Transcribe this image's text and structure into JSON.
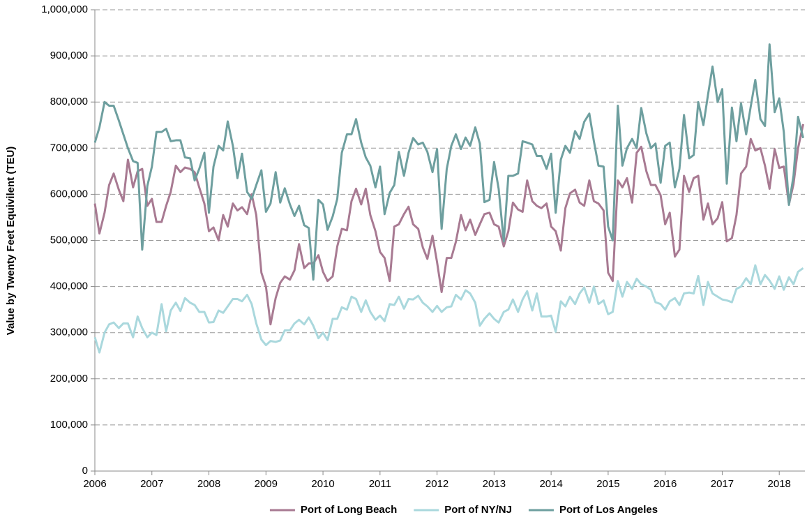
{
  "chart_data": {
    "type": "line",
    "y_label": "Value by Twenty Feet Equivilent (TEU)",
    "x": [
      2006,
      2006.08,
      2006.17,
      2006.25,
      2006.33,
      2006.42,
      2006.5,
      2006.58,
      2006.67,
      2006.75,
      2006.83,
      2006.92,
      2007,
      2007.08,
      2007.17,
      2007.25,
      2007.33,
      2007.42,
      2007.5,
      2007.58,
      2007.67,
      2007.75,
      2007.83,
      2007.92,
      2008,
      2008.08,
      2008.17,
      2008.25,
      2008.33,
      2008.42,
      2008.5,
      2008.58,
      2008.67,
      2008.75,
      2008.83,
      2008.92,
      2009,
      2009.08,
      2009.17,
      2009.25,
      2009.33,
      2009.42,
      2009.5,
      2009.58,
      2009.67,
      2009.75,
      2009.83,
      2009.92,
      2010,
      2010.08,
      2010.17,
      2010.25,
      2010.33,
      2010.42,
      2010.5,
      2010.58,
      2010.67,
      2010.75,
      2010.83,
      2010.92,
      2011,
      2011.08,
      2011.17,
      2011.25,
      2011.33,
      2011.42,
      2011.5,
      2011.58,
      2011.67,
      2011.75,
      2011.83,
      2011.92,
      2012,
      2012.08,
      2012.17,
      2012.25,
      2012.33,
      2012.42,
      2012.5,
      2012.58,
      2012.67,
      2012.75,
      2012.83,
      2012.92,
      2013,
      2013.08,
      2013.17,
      2013.25,
      2013.33,
      2013.42,
      2013.5,
      2013.58,
      2013.67,
      2013.75,
      2013.83,
      2013.92,
      2014,
      2014.08,
      2014.17,
      2014.25,
      2014.33,
      2014.42,
      2014.5,
      2014.58,
      2014.67,
      2014.75,
      2014.83,
      2014.92,
      2015,
      2015.08,
      2015.17,
      2015.25,
      2015.33,
      2015.42,
      2015.5,
      2015.58,
      2015.67,
      2015.75,
      2015.83,
      2015.92,
      2016,
      2016.08,
      2016.17,
      2016.25,
      2016.33,
      2016.42,
      2016.5,
      2016.58,
      2016.67,
      2016.75,
      2016.83,
      2016.92,
      2017,
      2017.08,
      2017.17,
      2017.25,
      2017.33,
      2017.42,
      2017.5,
      2017.58,
      2017.67,
      2017.75,
      2017.83,
      2017.92,
      2018,
      2018.08,
      2018.17,
      2018.25,
      2018.33,
      2018.42
    ],
    "series": [
      {
        "name": "Port of Long Beach",
        "color": "#a87a92",
        "values": [
          580000,
          515000,
          560000,
          620000,
          645000,
          610000,
          585000,
          675000,
          615000,
          650000,
          655000,
          575000,
          590000,
          540000,
          540000,
          575000,
          605000,
          662000,
          648000,
          658000,
          655000,
          648000,
          615000,
          580000,
          520000,
          528000,
          500000,
          555000,
          530000,
          580000,
          565000,
          572000,
          557000,
          600000,
          555000,
          430000,
          400000,
          318000,
          375000,
          408000,
          422000,
          415000,
          435000,
          492000,
          440000,
          450000,
          450000,
          468000,
          432000,
          412000,
          422000,
          487000,
          525000,
          522000,
          585000,
          612000,
          578000,
          612000,
          555000,
          520000,
          475000,
          462000,
          412000,
          530000,
          535000,
          557000,
          573000,
          535000,
          525000,
          485000,
          460000,
          510000,
          453000,
          388000,
          462000,
          462000,
          497000,
          555000,
          522000,
          545000,
          512000,
          535000,
          557000,
          560000,
          535000,
          530000,
          487000,
          520000,
          582000,
          567000,
          562000,
          630000,
          585000,
          575000,
          570000,
          580000,
          530000,
          520000,
          478000,
          570000,
          602000,
          610000,
          582000,
          575000,
          630000,
          585000,
          580000,
          565000,
          430000,
          412000,
          630000,
          615000,
          635000,
          582000,
          690000,
          703000,
          650000,
          620000,
          620000,
          598000,
          535000,
          560000,
          465000,
          480000,
          640000,
          605000,
          635000,
          640000,
          545000,
          580000,
          535000,
          548000,
          583000,
          498000,
          505000,
          555000,
          645000,
          660000,
          720000,
          695000,
          700000,
          662000,
          612000,
          698000,
          657000,
          660000,
          578000,
          622000,
          700000,
          752000
        ]
      },
      {
        "name": "Port of NY/NJ",
        "color": "#aad8dd",
        "values": [
          290000,
          257000,
          300000,
          318000,
          322000,
          310000,
          320000,
          320000,
          290000,
          335000,
          310000,
          290000,
          300000,
          295000,
          362000,
          303000,
          348000,
          365000,
          347000,
          375000,
          365000,
          360000,
          345000,
          345000,
          322000,
          323000,
          348000,
          343000,
          357000,
          373000,
          373000,
          368000,
          382000,
          362000,
          320000,
          285000,
          273000,
          282000,
          280000,
          283000,
          305000,
          305000,
          320000,
          328000,
          318000,
          333000,
          315000,
          288000,
          300000,
          284000,
          330000,
          330000,
          355000,
          350000,
          378000,
          373000,
          345000,
          370000,
          345000,
          328000,
          337000,
          325000,
          362000,
          360000,
          378000,
          352000,
          373000,
          372000,
          380000,
          365000,
          357000,
          345000,
          358000,
          345000,
          355000,
          357000,
          382000,
          372000,
          392000,
          385000,
          365000,
          315000,
          330000,
          342000,
          330000,
          322000,
          345000,
          350000,
          372000,
          345000,
          372000,
          390000,
          348000,
          385000,
          335000,
          335000,
          337000,
          302000,
          368000,
          357000,
          378000,
          362000,
          385000,
          398000,
          365000,
          400000,
          362000,
          370000,
          340000,
          345000,
          412000,
          378000,
          410000,
          395000,
          417000,
          405000,
          400000,
          393000,
          366000,
          362000,
          350000,
          368000,
          375000,
          360000,
          385000,
          387000,
          385000,
          423000,
          360000,
          410000,
          385000,
          378000,
          372000,
          370000,
          366000,
          395000,
          400000,
          418000,
          405000,
          446000,
          405000,
          425000,
          413000,
          395000,
          422000,
          393000,
          420000,
          405000,
          432000,
          440000
        ]
      },
      {
        "name": "Port of Los Angeles",
        "color": "#6e9f9f",
        "values": [
          712000,
          745000,
          800000,
          792000,
          792000,
          760000,
          730000,
          700000,
          672000,
          668000,
          480000,
          618000,
          660000,
          735000,
          735000,
          742000,
          715000,
          717000,
          717000,
          680000,
          678000,
          630000,
          655000,
          690000,
          560000,
          660000,
          705000,
          695000,
          758000,
          705000,
          635000,
          688000,
          605000,
          590000,
          620000,
          652000,
          562000,
          580000,
          648000,
          582000,
          613000,
          578000,
          553000,
          575000,
          533000,
          527000,
          415000,
          588000,
          578000,
          523000,
          552000,
          590000,
          690000,
          730000,
          730000,
          763000,
          712000,
          680000,
          662000,
          615000,
          660000,
          557000,
          603000,
          620000,
          692000,
          640000,
          690000,
          722000,
          708000,
          712000,
          692000,
          648000,
          698000,
          525000,
          655000,
          705000,
          730000,
          698000,
          723000,
          705000,
          745000,
          710000,
          583000,
          588000,
          670000,
          612000,
          498000,
          640000,
          640000,
          645000,
          715000,
          712000,
          708000,
          683000,
          683000,
          655000,
          688000,
          560000,
          675000,
          705000,
          690000,
          737000,
          720000,
          757000,
          775000,
          715000,
          662000,
          660000,
          530000,
          500000,
          792000,
          662000,
          700000,
          720000,
          700000,
          787000,
          732000,
          700000,
          710000,
          625000,
          705000,
          712000,
          615000,
          655000,
          772000,
          678000,
          685000,
          800000,
          750000,
          815000,
          877000,
          800000,
          828000,
          623000,
          788000,
          715000,
          797000,
          730000,
          790000,
          848000,
          763000,
          748000,
          925000,
          778000,
          808000,
          735000,
          577000,
          640000,
          768000,
          722000
        ]
      }
    ],
    "xlim": [
      2006,
      2018.45
    ],
    "xticks": [
      2006,
      2007,
      2008,
      2009,
      2010,
      2011,
      2012,
      2013,
      2014,
      2015,
      2016,
      2017,
      2018
    ],
    "ylim": [
      0,
      1000000
    ],
    "yticks": [
      0,
      {
        "value": 100000,
        "label": "100,000"
      },
      {
        "value": 200000,
        "label": "200,000"
      },
      {
        "value": 300000,
        "label": "300,000"
      },
      {
        "value": 400000,
        "label": "400,000"
      },
      {
        "value": 500000,
        "label": "500,000"
      },
      {
        "value": 600000,
        "label": "600,000"
      },
      {
        "value": 700000,
        "label": "700,000"
      },
      {
        "value": 800000,
        "label": "800,000"
      },
      {
        "value": 900000,
        "label": "900,000"
      },
      {
        "value": 1000000,
        "label": "1,000,000"
      }
    ],
    "grid": true,
    "legend": "bottom"
  }
}
